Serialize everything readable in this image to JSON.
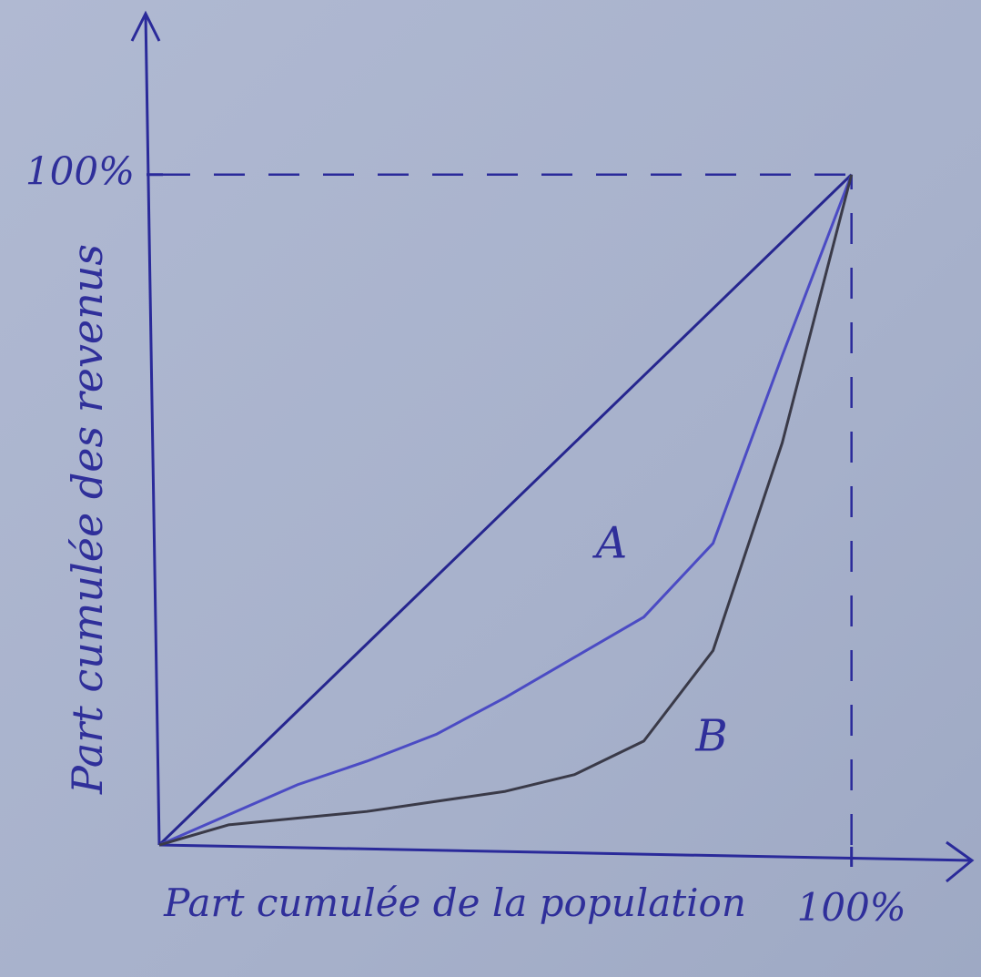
{
  "chart_data": {
    "type": "line",
    "x_label": "Part cumulée de la population",
    "y_label": "Part cumulée des revenus",
    "x": [
      0,
      10,
      20,
      30,
      40,
      50,
      60,
      70,
      80,
      90,
      100
    ],
    "series": [
      {
        "color": "#26268f",
        "values": [
          0,
          10,
          20,
          30,
          40,
          50,
          60,
          70,
          80,
          90,
          100
        ]
      },
      {
        "name": "A",
        "color": "#4b4bc4",
        "values": [
          0,
          4.5,
          9,
          12.5,
          16.5,
          22,
          28,
          34,
          45,
          73,
          100
        ]
      },
      {
        "name": "B",
        "color": "#3a3a48",
        "values": [
          0,
          3,
          4,
          5,
          6.5,
          8,
          10.5,
          15.5,
          29,
          60,
          100
        ]
      }
    ],
    "xlim": [
      0,
      117
    ],
    "ylim": [
      0,
      124
    ],
    "xticks": [
      {
        "value": 100,
        "label": "100%"
      }
    ],
    "yticks": [
      {
        "value": 100,
        "label": "100%"
      }
    ],
    "grid": true
  }
}
